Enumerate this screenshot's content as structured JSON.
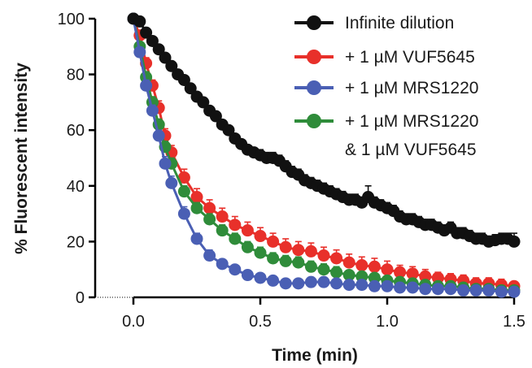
{
  "chart_data": {
    "type": "scatter",
    "title": "",
    "xlabel": "Time (min)",
    "ylabel": "% Fluorescent intensity",
    "xlim": [
      -0.15,
      1.5
    ],
    "ylim": [
      0,
      100
    ],
    "x_ticks": [
      {
        "value": 0.0,
        "label": "0.0"
      },
      {
        "value": 0.5,
        "label": "0.5"
      },
      {
        "value": 1.0,
        "label": "1.0"
      },
      {
        "value": 1.5,
        "label": "1.5"
      }
    ],
    "y_ticks": [
      {
        "value": 0,
        "label": "0"
      },
      {
        "value": 20,
        "label": "20"
      },
      {
        "value": 40,
        "label": "40"
      },
      {
        "value": 60,
        "label": "60"
      },
      {
        "value": 80,
        "label": "80"
      },
      {
        "value": 100,
        "label": "100"
      }
    ],
    "legend_position": "top-right",
    "grid": false,
    "series": [
      {
        "name": "+ 1 µM VUF5645",
        "color": "#e8302a",
        "x": [
          0.0,
          0.025,
          0.05,
          0.075,
          0.1,
          0.125,
          0.15,
          0.2,
          0.25,
          0.3,
          0.35,
          0.4,
          0.45,
          0.5,
          0.55,
          0.6,
          0.65,
          0.7,
          0.75,
          0.8,
          0.85,
          0.9,
          0.95,
          1.0,
          1.05,
          1.1,
          1.15,
          1.2,
          1.25,
          1.3,
          1.35,
          1.4,
          1.45,
          1.5
        ],
        "y": [
          100,
          94,
          84,
          76,
          68,
          58,
          52,
          43,
          36,
          32,
          29,
          26,
          24,
          22,
          20,
          18,
          17,
          16.5,
          15,
          14,
          12.5,
          11.5,
          11,
          10,
          9,
          8.5,
          7.5,
          7,
          6.5,
          6,
          5,
          5,
          4.5,
          4
        ],
        "error": [
          0,
          1.5,
          2,
          2,
          2.5,
          2.5,
          2.5,
          3,
          3,
          3,
          3,
          3,
          3,
          3,
          3,
          3,
          3,
          3,
          3,
          3,
          3,
          3,
          3,
          3,
          2.5,
          2.5,
          2.5,
          2,
          2,
          2,
          2,
          2,
          2,
          1.5
        ]
      },
      {
        "name": "+ 1 µM MRS1220 & 1 µM VUF5645",
        "color": "#2f8c3a",
        "x": [
          0.0,
          0.025,
          0.05,
          0.075,
          0.1,
          0.125,
          0.15,
          0.2,
          0.25,
          0.3,
          0.35,
          0.4,
          0.45,
          0.5,
          0.55,
          0.6,
          0.65,
          0.7,
          0.75,
          0.8,
          0.85,
          0.9,
          0.95,
          1.0,
          1.05,
          1.1,
          1.15,
          1.2,
          1.25,
          1.3,
          1.35,
          1.4,
          1.45,
          1.5
        ],
        "y": [
          100,
          90,
          79,
          70,
          62,
          54,
          48,
          38,
          32,
          28,
          24,
          21,
          18,
          16,
          14,
          13,
          12.5,
          11,
          10,
          9,
          8,
          7.5,
          7,
          6,
          5.5,
          5,
          4.5,
          4,
          4,
          3.5,
          3,
          3,
          2.5,
          2.5
        ],
        "error": [
          0,
          1.5,
          2,
          2,
          2,
          2,
          2,
          2,
          2,
          2,
          2,
          2,
          2,
          2,
          2,
          2,
          2,
          2,
          2,
          2,
          1.5,
          1.5,
          1.5,
          1.5,
          1.5,
          1.5,
          1.5,
          1.5,
          1.5,
          1.5,
          1.5,
          1.5,
          1.5,
          1.5
        ]
      },
      {
        "name": "+ 1 µM MRS1220",
        "color": "#4a5fb4",
        "x": [
          0.0,
          0.025,
          0.05,
          0.075,
          0.1,
          0.125,
          0.15,
          0.2,
          0.25,
          0.3,
          0.35,
          0.4,
          0.45,
          0.5,
          0.55,
          0.6,
          0.65,
          0.7,
          0.75,
          0.8,
          0.85,
          0.9,
          0.95,
          1.0,
          1.05,
          1.1,
          1.15,
          1.2,
          1.25,
          1.3,
          1.35,
          1.4,
          1.45,
          1.5
        ],
        "y": [
          100,
          88,
          76,
          67,
          58,
          48,
          41,
          30,
          21,
          15,
          12,
          10,
          8,
          7,
          6,
          5,
          5,
          5.5,
          5.5,
          5,
          4.5,
          4.5,
          4,
          4,
          3.5,
          3.5,
          3,
          3,
          3,
          2.5,
          2.5,
          2.5,
          2,
          2
        ],
        "error": [
          0,
          1.5,
          2,
          2,
          2,
          2.5,
          2.5,
          2.5,
          2,
          2,
          1.5,
          1.5,
          1.5,
          1.5,
          1.5,
          1.5,
          1.5,
          1.5,
          1.5,
          1.5,
          1.5,
          1.5,
          1.5,
          1.5,
          1.5,
          1.5,
          1.5,
          1.5,
          1.5,
          1.5,
          1.5,
          1.5,
          1.5,
          1.5
        ]
      },
      {
        "name": "Infinite dilution",
        "color": "#111111",
        "x": [
          0.0,
          0.025,
          0.05,
          0.075,
          0.1,
          0.125,
          0.15,
          0.175,
          0.2,
          0.225,
          0.25,
          0.275,
          0.3,
          0.325,
          0.35,
          0.375,
          0.4,
          0.425,
          0.45,
          0.475,
          0.5,
          0.525,
          0.55,
          0.575,
          0.6,
          0.625,
          0.65,
          0.675,
          0.7,
          0.725,
          0.75,
          0.775,
          0.8,
          0.825,
          0.85,
          0.875,
          0.9,
          0.925,
          0.95,
          0.975,
          1.0,
          1.025,
          1.05,
          1.075,
          1.1,
          1.125,
          1.15,
          1.175,
          1.2,
          1.225,
          1.25,
          1.275,
          1.3,
          1.325,
          1.35,
          1.375,
          1.4,
          1.425,
          1.45,
          1.475,
          1.5
        ],
        "y": [
          100,
          99,
          95,
          92,
          89,
          86,
          83,
          80,
          78,
          75,
          72,
          70,
          67,
          65,
          62,
          60,
          57,
          55,
          53,
          52,
          51,
          50,
          50,
          49,
          47,
          45,
          44,
          42,
          41,
          40,
          39,
          38,
          37,
          36,
          35,
          35,
          34,
          36,
          34,
          33,
          32,
          31,
          29,
          28,
          28,
          27,
          26,
          26,
          25,
          24,
          25,
          23,
          23,
          22,
          21,
          21,
          20,
          20.5,
          21,
          21,
          20
        ],
        "error": [
          0,
          1,
          1.5,
          1.5,
          1.5,
          1.5,
          1.5,
          1.5,
          1.5,
          1.5,
          1.5,
          1.5,
          1.5,
          1.5,
          1.5,
          1.5,
          1.5,
          1.5,
          1.5,
          1.5,
          2,
          2,
          2,
          2,
          2,
          2,
          2,
          2,
          2,
          2,
          2,
          2,
          2,
          2,
          2,
          2,
          2,
          4,
          2,
          2,
          2,
          2,
          2,
          2,
          2,
          2,
          2,
          2,
          2,
          2,
          2,
          2,
          2,
          2,
          2,
          2,
          2,
          2,
          2,
          2,
          3
        ]
      }
    ],
    "legend": [
      {
        "label": "Infinite dilution",
        "color": "#111111"
      },
      {
        "label": "+ 1 µM VUF5645",
        "color": "#e8302a"
      },
      {
        "label": "+ 1 µM MRS1220",
        "color": "#4a5fb4"
      },
      {
        "label": "+ 1 µM MRS1220",
        "label2": "& 1 µM VUF5645",
        "color": "#2f8c3a"
      }
    ]
  }
}
